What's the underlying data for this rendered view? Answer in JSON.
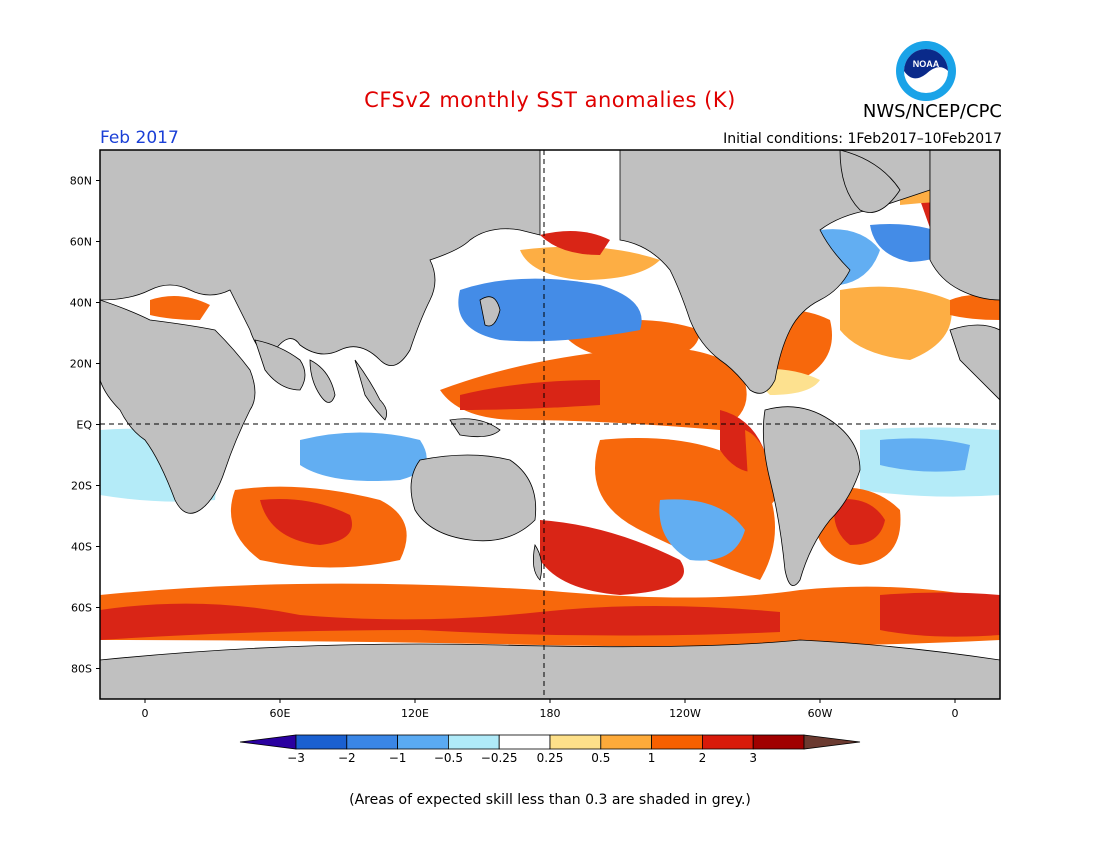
{
  "header": {
    "title": "CFSv2 monthly SST anomalies (K)",
    "agency": "NWS/NCEP/CPC",
    "logo_text": "NOAA",
    "month": "Feb 2017",
    "initial_conditions": "Initial conditions: 1Feb2017–10Feb2017"
  },
  "map": {
    "projection": "equirectangular",
    "lon_range": [
      -20,
      380
    ],
    "lat_range": [
      -90,
      90
    ],
    "land_color": "#c0c0c0",
    "lat_labels": [
      "80N",
      "60N",
      "40N",
      "20N",
      "EQ",
      "20S",
      "40S",
      "60S",
      "80S"
    ],
    "lon_labels": [
      "0",
      "60E",
      "120E",
      "180",
      "120W",
      "60W",
      "0"
    ],
    "dashed_lines": [
      "Equator",
      "180"
    ]
  },
  "colorbar": {
    "levels": [
      "-3",
      "-2",
      "-1",
      "-0.5",
      "-0.25",
      "0.25",
      "0.5",
      "1",
      "2",
      "3"
    ],
    "colors": [
      "#2a00a0",
      "#1a60d0",
      "#3a86e6",
      "#5aaaf2",
      "#b0eaf8",
      "#ffffff",
      "#fde08a",
      "#fdaa3a",
      "#f76000",
      "#d81a0a",
      "#a00000",
      "#6b3a30"
    ]
  },
  "footnote": "(Areas of expected skill less than 0.3 are shaded in grey.)"
}
